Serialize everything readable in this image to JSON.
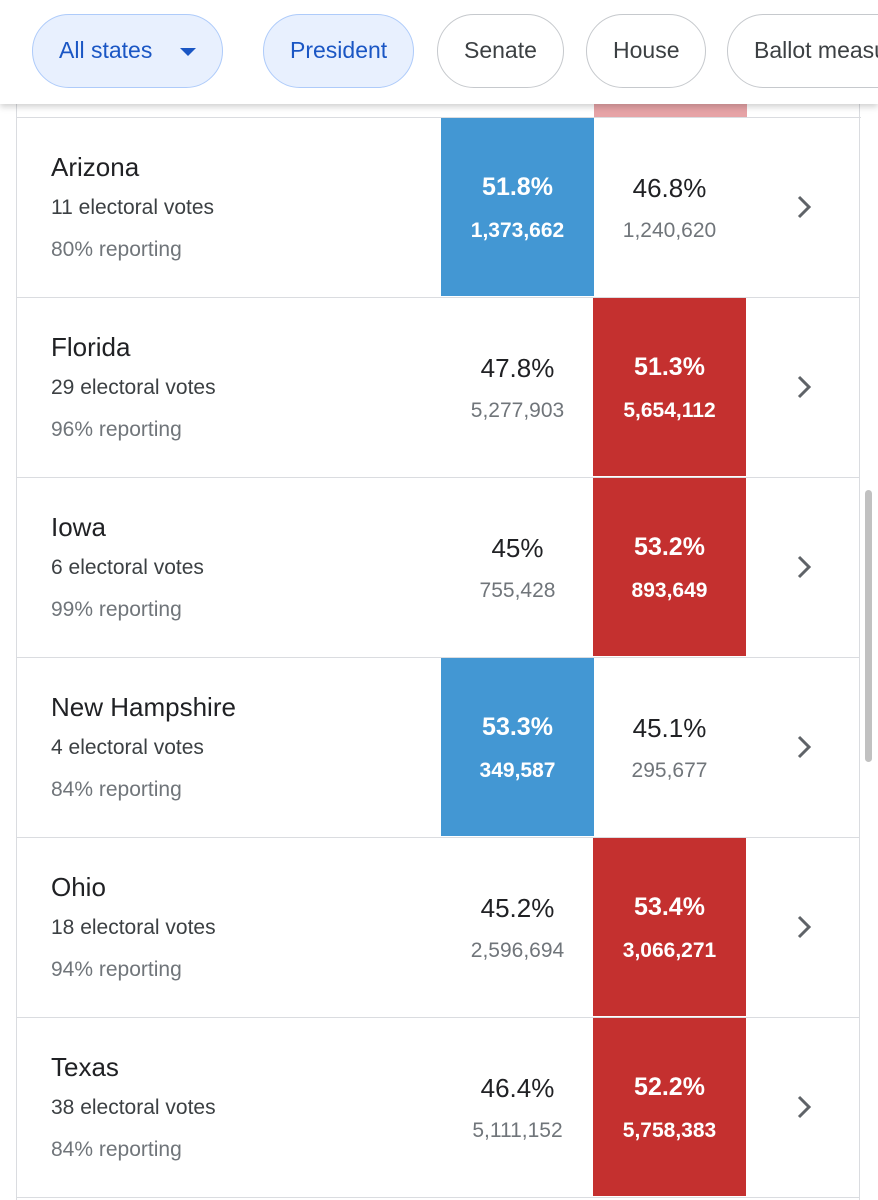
{
  "filters": [
    {
      "label": "All states",
      "selected": true,
      "dropdown": true
    },
    {
      "label": "President",
      "selected": true,
      "dropdown": false
    },
    {
      "label": "Senate",
      "selected": false,
      "dropdown": false
    },
    {
      "label": "House",
      "selected": false,
      "dropdown": false
    },
    {
      "label": "Ballot measures",
      "selected": false,
      "dropdown": false
    }
  ],
  "rows": [
    {
      "state": "Arizona",
      "electoral_votes": "11 electoral votes",
      "reporting": "80% reporting",
      "dem_pct": "51.8%",
      "dem_votes": "1,373,662",
      "rep_pct": "46.8%",
      "rep_votes": "1,240,620",
      "winner": "dem"
    },
    {
      "state": "Florida",
      "electoral_votes": "29 electoral votes",
      "reporting": "96% reporting",
      "dem_pct": "47.8%",
      "dem_votes": "5,277,903",
      "rep_pct": "51.3%",
      "rep_votes": "5,654,112",
      "winner": "rep"
    },
    {
      "state": "Iowa",
      "electoral_votes": "6 electoral votes",
      "reporting": "99% reporting",
      "dem_pct": "45%",
      "dem_votes": "755,428",
      "rep_pct": "53.2%",
      "rep_votes": "893,649",
      "winner": "rep"
    },
    {
      "state": "New Hampshire",
      "electoral_votes": "4 electoral votes",
      "reporting": "84% reporting",
      "dem_pct": "53.3%",
      "dem_votes": "349,587",
      "rep_pct": "45.1%",
      "rep_votes": "295,677",
      "winner": "dem"
    },
    {
      "state": "Ohio",
      "electoral_votes": "18 electoral votes",
      "reporting": "94% reporting",
      "dem_pct": "45.2%",
      "dem_votes": "2,596,694",
      "rep_pct": "53.4%",
      "rep_votes": "3,066,271",
      "winner": "rep"
    },
    {
      "state": "Texas",
      "electoral_votes": "38 electoral votes",
      "reporting": "84% reporting",
      "dem_pct": "46.4%",
      "dem_votes": "5,111,152",
      "rep_pct": "52.2%",
      "rep_votes": "5,758,383",
      "winner": "rep"
    }
  ]
}
